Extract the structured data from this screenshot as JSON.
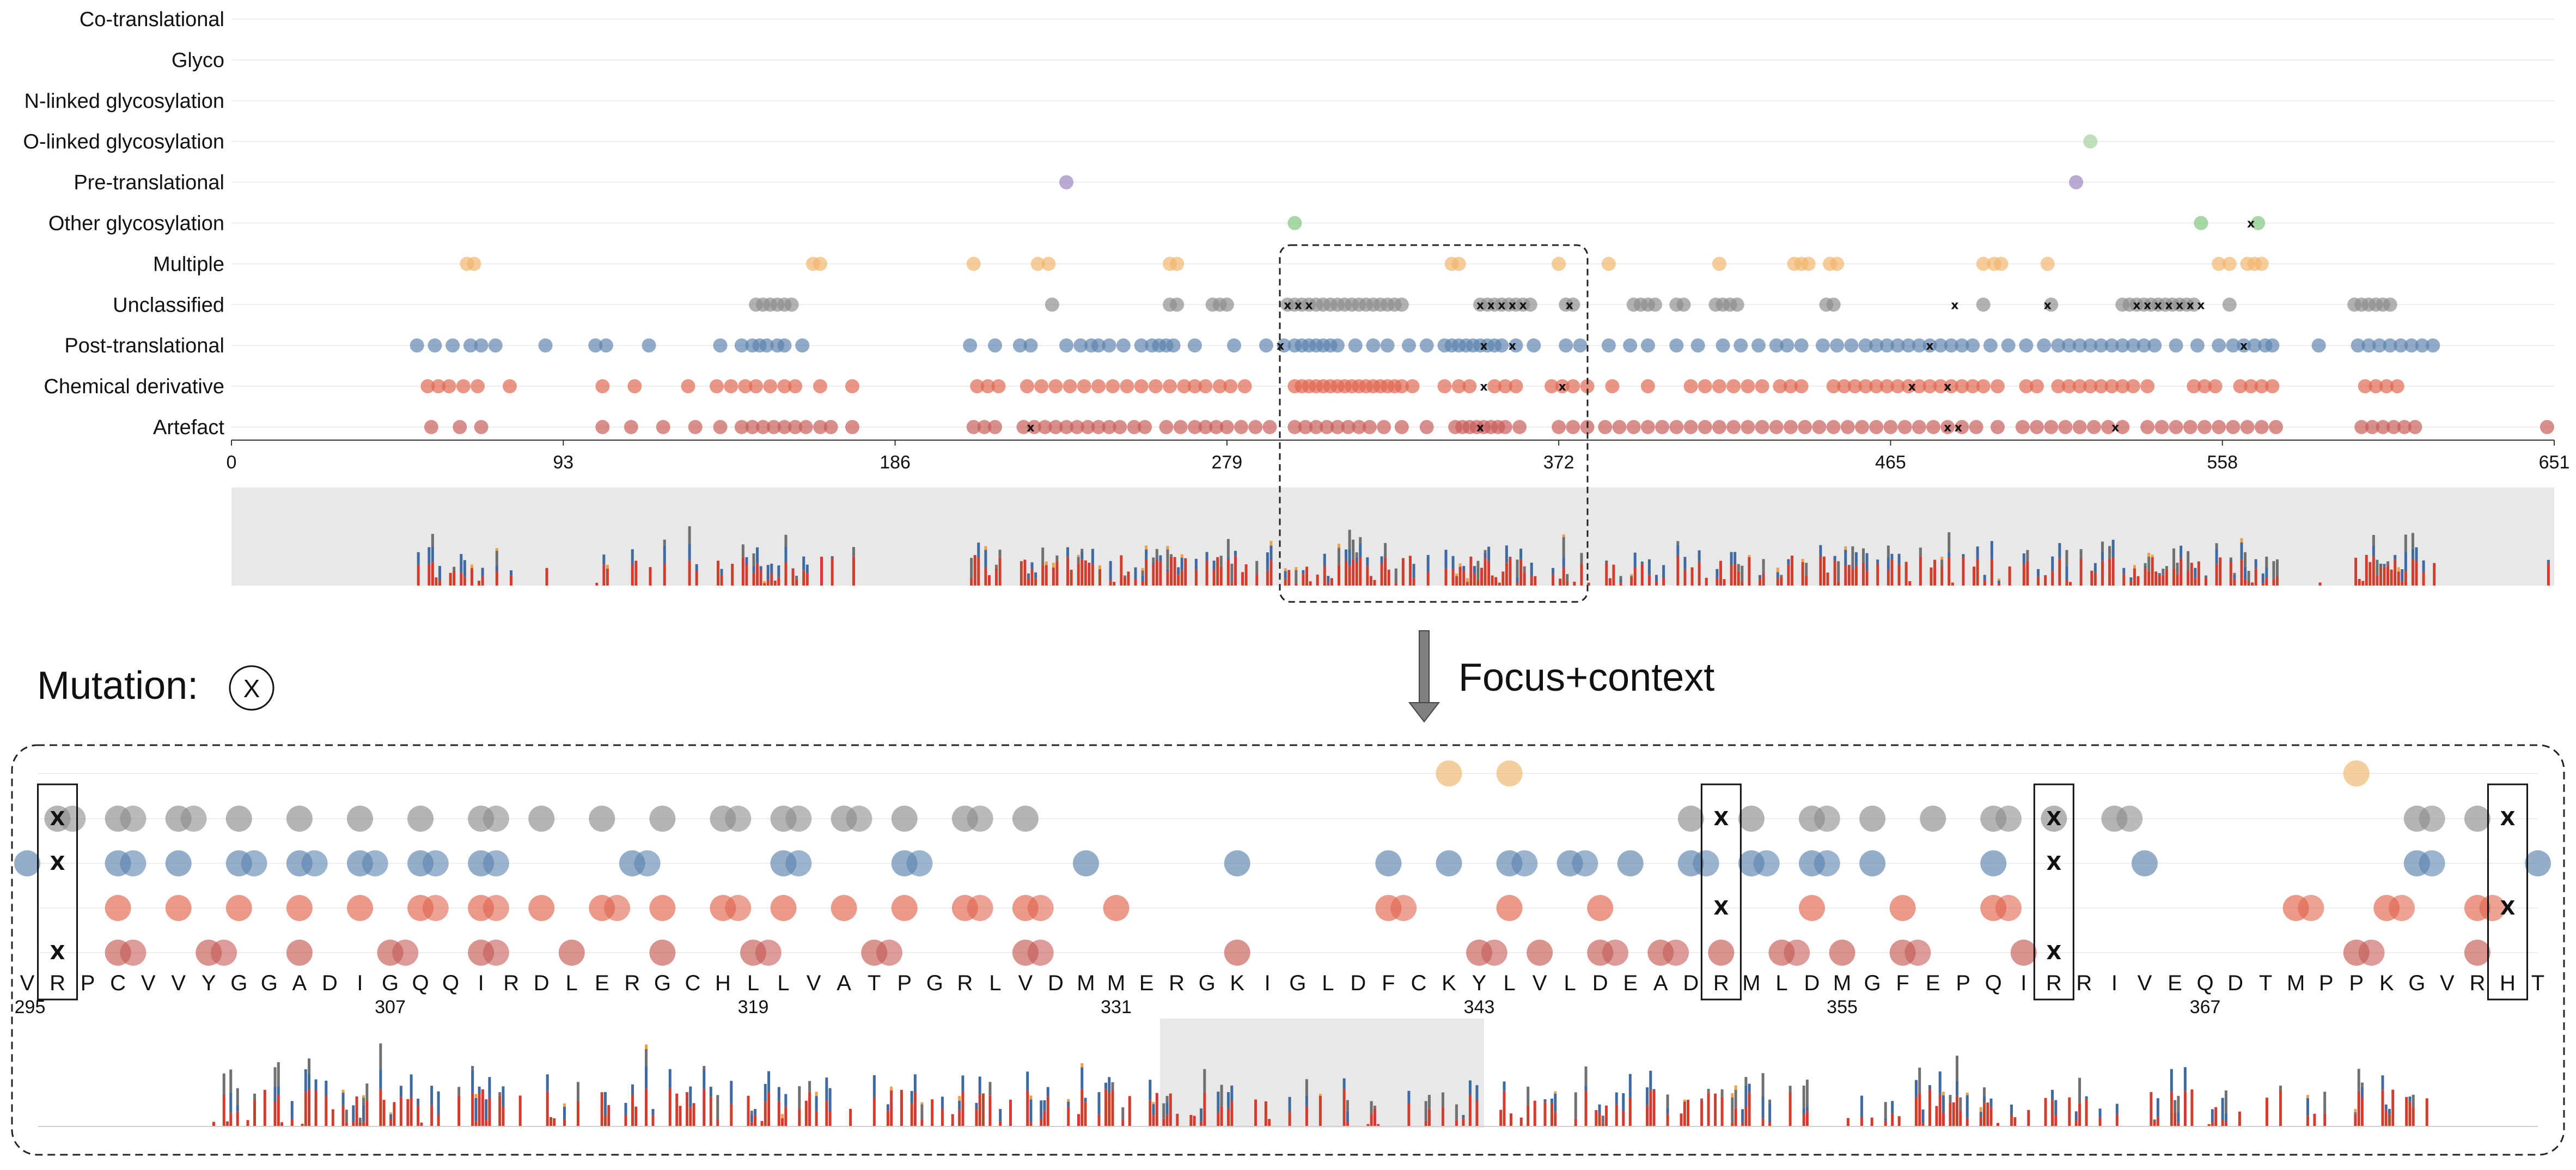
{
  "chart_data": {
    "type": "scatter",
    "categories": [
      "Co-translational",
      "Glyco",
      "N-linked glycosylation",
      "O-linked glycosylation",
      "Pre-translational",
      "Other glycosylation",
      "Multiple",
      "Unclassified",
      "Post-translational",
      "Chemical derivative",
      "Artefact"
    ],
    "x_ticks": [
      "0",
      "93",
      "186",
      "279",
      "372",
      "465",
      "558",
      "651"
    ],
    "xlim": [
      0,
      651
    ],
    "focus_range": [
      295,
      380
    ],
    "colors": {
      "Multiple": "#f0b46a",
      "Unclassified": "#8c8c8c",
      "Post-translational": "#5b82ad",
      "Chemical derivative": "#e0644c",
      "Artefact": "#c55a55",
      "Pre-translational": "#9a82bb",
      "Other glycosylation": "#7cc47a",
      "O-linked glycosylation": "#9fd09a",
      "bar_artefact": "#d23c2c",
      "bar_post": "#3e6aa0",
      "bar_multiple": "#f0a040",
      "bar_unclassified": "#707070",
      "context_bg": "#e8e8e8"
    },
    "overview_points": {
      "O-linked glycosylation": [
        521
      ],
      "Pre-translational": [
        234,
        517
      ],
      "Other glycosylation": [
        298,
        552,
        568
      ],
      "Multiple": [
        66,
        68,
        163,
        165,
        208,
        226,
        229,
        263,
        265,
        342,
        344,
        372,
        386,
        417,
        438,
        440,
        442,
        448,
        450,
        491,
        494,
        496,
        509,
        557,
        560,
        565,
        567,
        569
      ],
      "Unclassified": [
        147,
        149,
        151,
        153,
        155,
        157,
        230,
        263,
        265,
        275,
        277,
        279,
        296,
        298,
        300,
        302,
        304,
        306,
        308,
        310,
        312,
        314,
        316,
        318,
        320,
        322,
        324,
        326,
        328,
        350,
        352,
        354,
        356,
        358,
        360,
        362,
        364,
        374,
        376,
        393,
        395,
        397,
        399,
        405,
        407,
        416,
        418,
        420,
        422,
        447,
        449,
        491,
        510,
        530,
        532,
        534,
        536,
        538,
        540,
        542,
        544,
        546,
        548,
        550,
        560,
        595,
        597,
        599,
        601,
        603,
        605
      ],
      "Post-translational": [
        52,
        57,
        62,
        67,
        70,
        74,
        88,
        102,
        105,
        117,
        137,
        143,
        146,
        148,
        150,
        153,
        155,
        160,
        207,
        214,
        221,
        224,
        234,
        238,
        241,
        243,
        246,
        250,
        255,
        258,
        260,
        262,
        264,
        270,
        281,
        290,
        295,
        298,
        300,
        302,
        304,
        306,
        308,
        310,
        315,
        320,
        324,
        330,
        335,
        340,
        342,
        344,
        346,
        348,
        350,
        352,
        354,
        356,
        360,
        365,
        374,
        378,
        386,
        392,
        397,
        405,
        411,
        418,
        423,
        428,
        433,
        436,
        440,
        446,
        450,
        454,
        458,
        461,
        464,
        467,
        470,
        473,
        476,
        479,
        482,
        485,
        488,
        493,
        498,
        503,
        508,
        512,
        515,
        518,
        521,
        524,
        527,
        530,
        533,
        536,
        539,
        545,
        551,
        557,
        561,
        564,
        567,
        570,
        572,
        585,
        596,
        599,
        602,
        605,
        608,
        611,
        614,
        617
      ],
      "Chemical derivative": [
        55,
        58,
        61,
        65,
        69,
        78,
        104,
        113,
        128,
        136,
        140,
        144,
        147,
        151,
        155,
        158,
        165,
        174,
        209,
        212,
        215,
        223,
        227,
        231,
        235,
        239,
        243,
        247,
        251,
        255,
        259,
        263,
        267,
        270,
        273,
        277,
        280,
        284,
        298,
        300,
        302,
        304,
        306,
        308,
        310,
        312,
        314,
        316,
        318,
        320,
        322,
        324,
        326,
        328,
        331,
        340,
        344,
        347,
        354,
        357,
        360,
        370,
        373,
        376,
        380,
        387,
        397,
        409,
        413,
        417,
        421,
        425,
        429,
        434,
        437,
        440,
        449,
        452,
        455,
        458,
        461,
        464,
        467,
        470,
        473,
        476,
        479,
        482,
        485,
        488,
        491,
        495,
        503,
        506,
        512,
        515,
        518,
        521,
        524,
        527,
        530,
        533,
        537,
        550,
        553,
        556,
        563,
        566,
        569,
        572,
        598,
        601,
        604,
        607
      ],
      "Artefact": [
        56,
        64,
        70,
        104,
        112,
        121,
        130,
        137,
        143,
        146,
        149,
        152,
        155,
        158,
        161,
        165,
        168,
        174,
        208,
        211,
        214,
        222,
        225,
        228,
        231,
        234,
        237,
        240,
        243,
        246,
        249,
        253,
        256,
        262,
        266,
        270,
        273,
        276,
        279,
        283,
        287,
        291,
        298,
        301,
        304,
        307,
        310,
        313,
        316,
        319,
        323,
        328,
        335,
        343,
        345,
        347,
        349,
        351,
        353,
        355,
        357,
        361,
        372,
        376,
        380,
        385,
        389,
        393,
        397,
        401,
        405,
        409,
        413,
        417,
        421,
        425,
        429,
        433,
        437,
        441,
        445,
        449,
        453,
        457,
        461,
        465,
        469,
        473,
        477,
        481,
        485,
        489,
        495,
        502,
        506,
        510,
        514,
        518,
        522,
        526,
        530,
        537,
        541,
        545,
        549,
        553,
        557,
        561,
        565,
        569,
        573,
        597,
        600,
        603,
        606,
        609,
        612,
        649
      ]
    },
    "overview_mutations": {
      "Unclassified": [
        296,
        299,
        302,
        350,
        353,
        356,
        359,
        362,
        375,
        483,
        509,
        534,
        537,
        540,
        543,
        546,
        549,
        552
      ],
      "Post-translational": [
        294,
        351,
        359,
        476,
        564
      ],
      "Chemical derivative": [
        351,
        373,
        471,
        481
      ],
      "Artefact": [
        224,
        350,
        481,
        484,
        528
      ],
      "Other glycosylation": [
        566
      ]
    },
    "focus": {
      "sequence": [
        "V",
        "R",
        "P",
        "C",
        "V",
        "V",
        "Y",
        "G",
        "G",
        "A",
        "D",
        "I",
        "G",
        "Q",
        "Q",
        "I",
        "R",
        "D",
        "L",
        "E",
        "R",
        "G",
        "C",
        "H",
        "L",
        "L",
        "V",
        "A",
        "T",
        "P",
        "G",
        "R",
        "L",
        "V",
        "D",
        "M",
        "M",
        "E",
        "R",
        "G",
        "K",
        "I",
        "G",
        "L",
        "D",
        "F",
        "C",
        "K",
        "Y",
        "L",
        "V",
        "L",
        "D",
        "E",
        "A",
        "D",
        "R",
        "M",
        "L",
        "D",
        "M",
        "G",
        "F",
        "E",
        "P",
        "Q",
        "I",
        "R",
        "R",
        "I",
        "V",
        "E",
        "Q",
        "D",
        "T",
        "M",
        "P",
        "P",
        "K",
        "G",
        "V",
        "R",
        "H",
        "T"
      ],
      "position_labels": [
        "295",
        "307",
        "319",
        "331",
        "343",
        "355",
        "367"
      ],
      "mutation_residues": [
        1,
        56,
        67,
        82
      ]
    },
    "legend": {
      "mutation_label": "Mutation:",
      "mutation_symbol": "X"
    },
    "annotation": "Focus+context"
  }
}
